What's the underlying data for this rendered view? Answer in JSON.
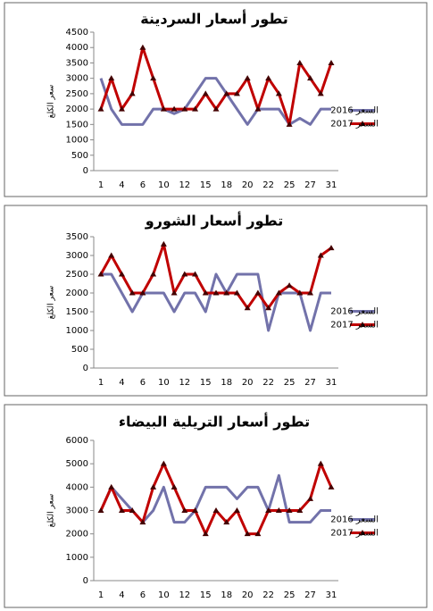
{
  "chart_data": [
    {
      "type": "line",
      "title": "تطور أسعار السردينة",
      "y_label": "سعر الكلغ",
      "categories": [
        1,
        null,
        4,
        null,
        6,
        null,
        10,
        null,
        12,
        null,
        15,
        null,
        18,
        null,
        20,
        null,
        22,
        null,
        25,
        null,
        27,
        null,
        31
      ],
      "series": [
        {
          "name": "السعر 2016",
          "color": "#7272aa",
          "values": [
            3000,
            2000,
            1500,
            1500,
            1500,
            2000,
            2000,
            1850,
            2000,
            2500,
            3000,
            3000,
            2500,
            2000,
            1500,
            2000,
            2000,
            2000,
            1500,
            1700,
            1500,
            2000,
            2000
          ]
        },
        {
          "name": "السعر 2017",
          "color": "#c00000",
          "values": [
            2000,
            3000,
            2000,
            2500,
            4000,
            3000,
            2000,
            2000,
            2000,
            2000,
            2500,
            2000,
            2500,
            2500,
            3000,
            2000,
            3000,
            2500,
            1500,
            3500,
            3000,
            2500,
            3500
          ]
        }
      ],
      "ylim": [
        0,
        4500
      ],
      "yticks": [
        0,
        500,
        1000,
        1500,
        2000,
        2500,
        3000,
        3500,
        4000,
        4500
      ],
      "grid": false,
      "legend": "right"
    },
    {
      "type": "line",
      "title": "تطور أسعار الشورو",
      "y_label": "سعر الكلغ",
      "categories": [
        1,
        null,
        4,
        null,
        6,
        null,
        10,
        null,
        12,
        null,
        15,
        null,
        18,
        null,
        20,
        null,
        22,
        null,
        25,
        null,
        27,
        null,
        31
      ],
      "series": [
        {
          "name": "السعر 2016",
          "color": "#7272aa",
          "values": [
            2500,
            2500,
            2000,
            1500,
            2000,
            2000,
            2000,
            1500,
            2000,
            2000,
            1500,
            2500,
            2000,
            2500,
            2500,
            2500,
            1000,
            2000,
            2000,
            2000,
            1000,
            2000,
            2000
          ]
        },
        {
          "name": "السعر 2017",
          "color": "#c00000",
          "values": [
            2500,
            3000,
            2500,
            2000,
            2000,
            2500,
            3300,
            2000,
            2500,
            2500,
            2000,
            2000,
            2000,
            2000,
            1600,
            2000,
            1600,
            2000,
            2200,
            2000,
            2000,
            3000,
            3200
          ]
        }
      ],
      "ylim": [
        0,
        3500
      ],
      "yticks": [
        0,
        500,
        1000,
        1500,
        2000,
        2500,
        3000,
        3500
      ],
      "grid": false,
      "legend": "right"
    },
    {
      "type": "line",
      "title": "تطور أسعار التريلية البيضاء",
      "y_label": "سعر الكلغ",
      "categories": [
        1,
        null,
        4,
        null,
        6,
        null,
        10,
        null,
        12,
        null,
        15,
        null,
        18,
        null,
        20,
        null,
        22,
        null,
        25,
        null,
        27,
        null,
        31
      ],
      "series": [
        {
          "name": "السعر 2016",
          "color": "#7272aa",
          "values": [
            3000,
            4000,
            3500,
            3000,
            2500,
            3000,
            4000,
            2500,
            2500,
            3000,
            4000,
            4000,
            4000,
            3500,
            4000,
            4000,
            3000,
            4500,
            2500,
            2500,
            2500,
            3000,
            3000
          ]
        },
        {
          "name": "السعر 2017",
          "color": "#c00000",
          "values": [
            3000,
            4000,
            3000,
            3000,
            2500,
            4000,
            5000,
            4000,
            3000,
            3000,
            2000,
            3000,
            2500,
            3000,
            2000,
            2000,
            3000,
            3000,
            3000,
            3000,
            3500,
            5000,
            4000
          ]
        }
      ],
      "ylim": [
        0,
        6000
      ],
      "yticks": [
        0,
        1000,
        2000,
        3000,
        4000,
        5000,
        6000
      ],
      "grid": false,
      "legend": "right"
    }
  ]
}
